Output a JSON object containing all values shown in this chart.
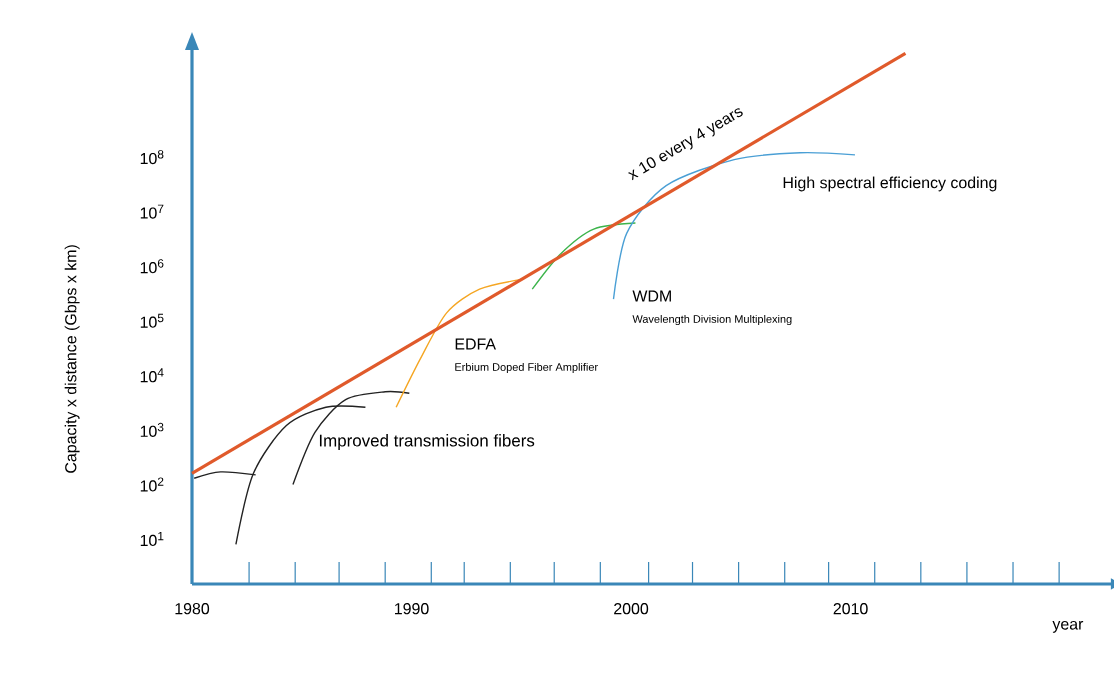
{
  "chart_data": {
    "type": "line",
    "xlabel": "year",
    "ylabel": "Capacity x distance  (Gbps x km)",
    "log": true,
    "marker": "none",
    "line_style": "solid",
    "xlim": [
      1980,
      2022
    ],
    "ylim": [
      1.5,
      10000000000
    ],
    "xticks": [
      1980,
      1990,
      2000,
      2010,
      {
        "value": 1982.6,
        "label": null
      },
      {
        "value": 1984.7,
        "label": null
      },
      {
        "value": 1986.7,
        "label": null
      },
      {
        "value": 1988.8,
        "label": null
      },
      {
        "value": 1990.9,
        "label": null
      },
      {
        "value": 1992.4,
        "label": null
      },
      {
        "value": 1994.5,
        "label": null
      },
      {
        "value": 1996.5,
        "label": null
      },
      {
        "value": 1998.6,
        "label": null
      },
      {
        "value": 2000.8,
        "label": null
      },
      {
        "value": 2002.8,
        "label": null
      },
      {
        "value": 2004.9,
        "label": null
      },
      {
        "value": 2007.0,
        "label": null
      },
      {
        "value": 2009.0,
        "label": null
      },
      {
        "value": 2011.1,
        "label": null
      },
      {
        "value": 2013.2,
        "label": null
      },
      {
        "value": 2015.3,
        "label": null
      },
      {
        "value": 2017.4,
        "label": null
      },
      {
        "value": 2019.5,
        "label": null
      }
    ],
    "yticks": [
      {
        "value": 10,
        "label": "10$^{1}$"
      },
      {
        "value": 100,
        "label": "10$^{2}$"
      },
      {
        "value": 1000,
        "label": "10$^{3}$"
      },
      {
        "value": 10000,
        "label": "10$^{4}$"
      },
      {
        "value": 100000,
        "label": "10$^{5}$"
      },
      {
        "value": 1000000,
        "label": "10$^{6}$"
      },
      {
        "value": 10000000,
        "label": "10$^{7}$"
      },
      {
        "value": 100000000,
        "label": "10$^{8}$"
      }
    ],
    "series": [
      {
        "color": "#222222",
        "x": [
          1980.1,
          1981.3,
          1982.9
        ],
        "values": [
          130,
          170,
          150
        ]
      },
      {
        "color": "#222222",
        "x": [
          1982.0,
          1982.8,
          1984.3,
          1986.1,
          1987.9
        ],
        "values": [
          8,
          160,
          1200,
          2600,
          2600
        ]
      },
      {
        "color": "#222222",
        "x": [
          1984.6,
          1985.6,
          1987.0,
          1988.8,
          1989.9
        ],
        "values": [
          100,
          900,
          3600,
          5000,
          4700
        ]
      },
      {
        "color": "#f5a623",
        "x": [
          1989.3,
          1990.4,
          1991.6,
          1993.1,
          1995.1
        ],
        "values": [
          2600,
          20000,
          140000,
          380000,
          580000
        ]
      },
      {
        "color": "#3cb44b",
        "x": [
          1995.5,
          1996.8,
          1998.3,
          2000.2
        ],
        "values": [
          380000,
          1700000,
          4800000,
          6200000
        ]
      },
      {
        "color": "#4a9fd5",
        "x": [
          1999.2,
          1999.8,
          2001.6,
          2004.7,
          2007.7,
          2010.2
        ],
        "values": [
          250000,
          4000000,
          30000000,
          90000000,
          120000000,
          110000000
        ]
      },
      {
        "color": "#e05a2b",
        "x": [
          1980,
          2012.5
        ],
        "values": [
          160,
          8000000000
        ]
      }
    ],
    "annotations": [
      "x 10 every 4 years",
      "High spectral efficiency coding",
      "WDM",
      "Wavelength Division Multiplexing",
      "EDFA",
      "Erbium Doped Fiber Amplifier",
      "Improved transmission fibers"
    ]
  }
}
